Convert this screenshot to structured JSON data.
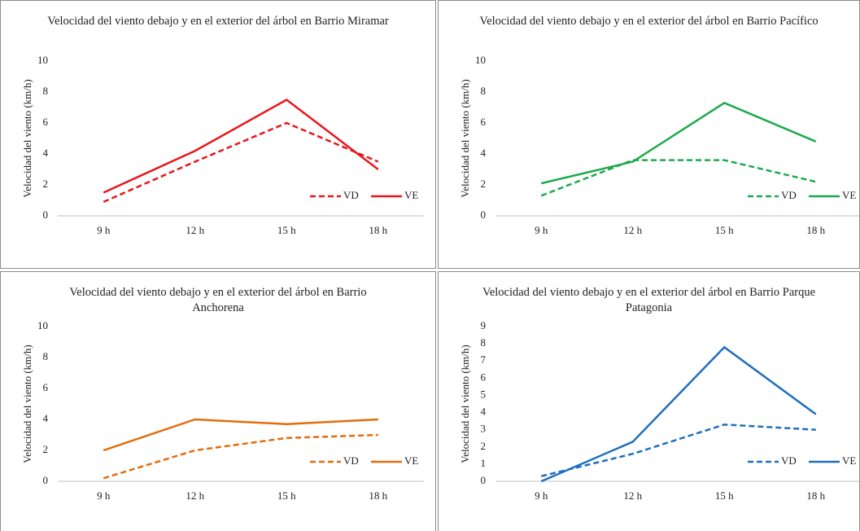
{
  "chart_data": [
    {
      "type": "line",
      "title": "Velocidad del viento debajo y en el exterior del árbol en Barrio Miramar",
      "y_label": "Velocidad del viento (km/h)",
      "categories": [
        "9 h",
        "12 h",
        "15 h",
        "18 h"
      ],
      "ylim": [
        0,
        10
      ],
      "yticks": [
        0,
        2,
        4,
        6,
        8,
        10
      ],
      "series": [
        {
          "name": "VD",
          "color": "#e8161b",
          "line_style": "dashed",
          "values": [
            0.9,
            3.5,
            6.0,
            3.5
          ]
        },
        {
          "name": "VE",
          "color": "#e8161b",
          "line_style": "solid",
          "values": [
            1.5,
            4.2,
            7.5,
            3.0
          ]
        }
      ]
    },
    {
      "type": "line",
      "title": "Velocidad del viento debajo y en el exterior del árbol en Barrio Pacífico",
      "y_label": "Velocidad del viento (km/h)",
      "categories": [
        "9 h",
        "12 h",
        "15 h",
        "18 h"
      ],
      "ylim": [
        0,
        10
      ],
      "yticks": [
        0,
        2,
        4,
        6,
        8,
        10
      ],
      "series": [
        {
          "name": "VD",
          "color": "#1daa4c",
          "line_style": "dashed",
          "values": [
            1.3,
            3.6,
            3.6,
            2.2
          ]
        },
        {
          "name": "VE",
          "color": "#1daa4c",
          "line_style": "solid",
          "values": [
            2.1,
            3.5,
            7.3,
            4.8
          ]
        }
      ]
    },
    {
      "type": "line",
      "title": "Velocidad del viento debajo y en el exterior del árbol en Barrio Anchorena",
      "y_label": "Velocidad del viento (km/h)",
      "categories": [
        "9 h",
        "12 h",
        "15 h",
        "18 h"
      ],
      "ylim": [
        0,
        10
      ],
      "yticks": [
        0,
        2,
        4,
        6,
        8,
        10
      ],
      "series": [
        {
          "name": "VD",
          "color": "#e46c0a",
          "line_style": "dashed",
          "values": [
            0.2,
            2.0,
            2.8,
            3.0
          ]
        },
        {
          "name": "VE",
          "color": "#e46c0a",
          "line_style": "solid",
          "values": [
            2.0,
            4.0,
            3.7,
            4.0
          ]
        }
      ]
    },
    {
      "type": "line",
      "title": "Velocidad del viento debajo y en el exterior del árbol en Barrio Parque Patagonia",
      "y_label": "Velocidad del viento (km/h)",
      "categories": [
        "9 h",
        "12 h",
        "15 h",
        "18 h"
      ],
      "ylim": [
        0,
        9
      ],
      "yticks": [
        0,
        1,
        2,
        3,
        4,
        5,
        6,
        7,
        8,
        9
      ],
      "series": [
        {
          "name": "VD",
          "color": "#1f6fbf",
          "line_style": "dashed",
          "values": [
            0.3,
            1.6,
            3.3,
            3.0
          ]
        },
        {
          "name": "VE",
          "color": "#1f6fbf",
          "line_style": "solid",
          "values": [
            0.0,
            2.3,
            7.8,
            3.9
          ]
        }
      ]
    }
  ]
}
